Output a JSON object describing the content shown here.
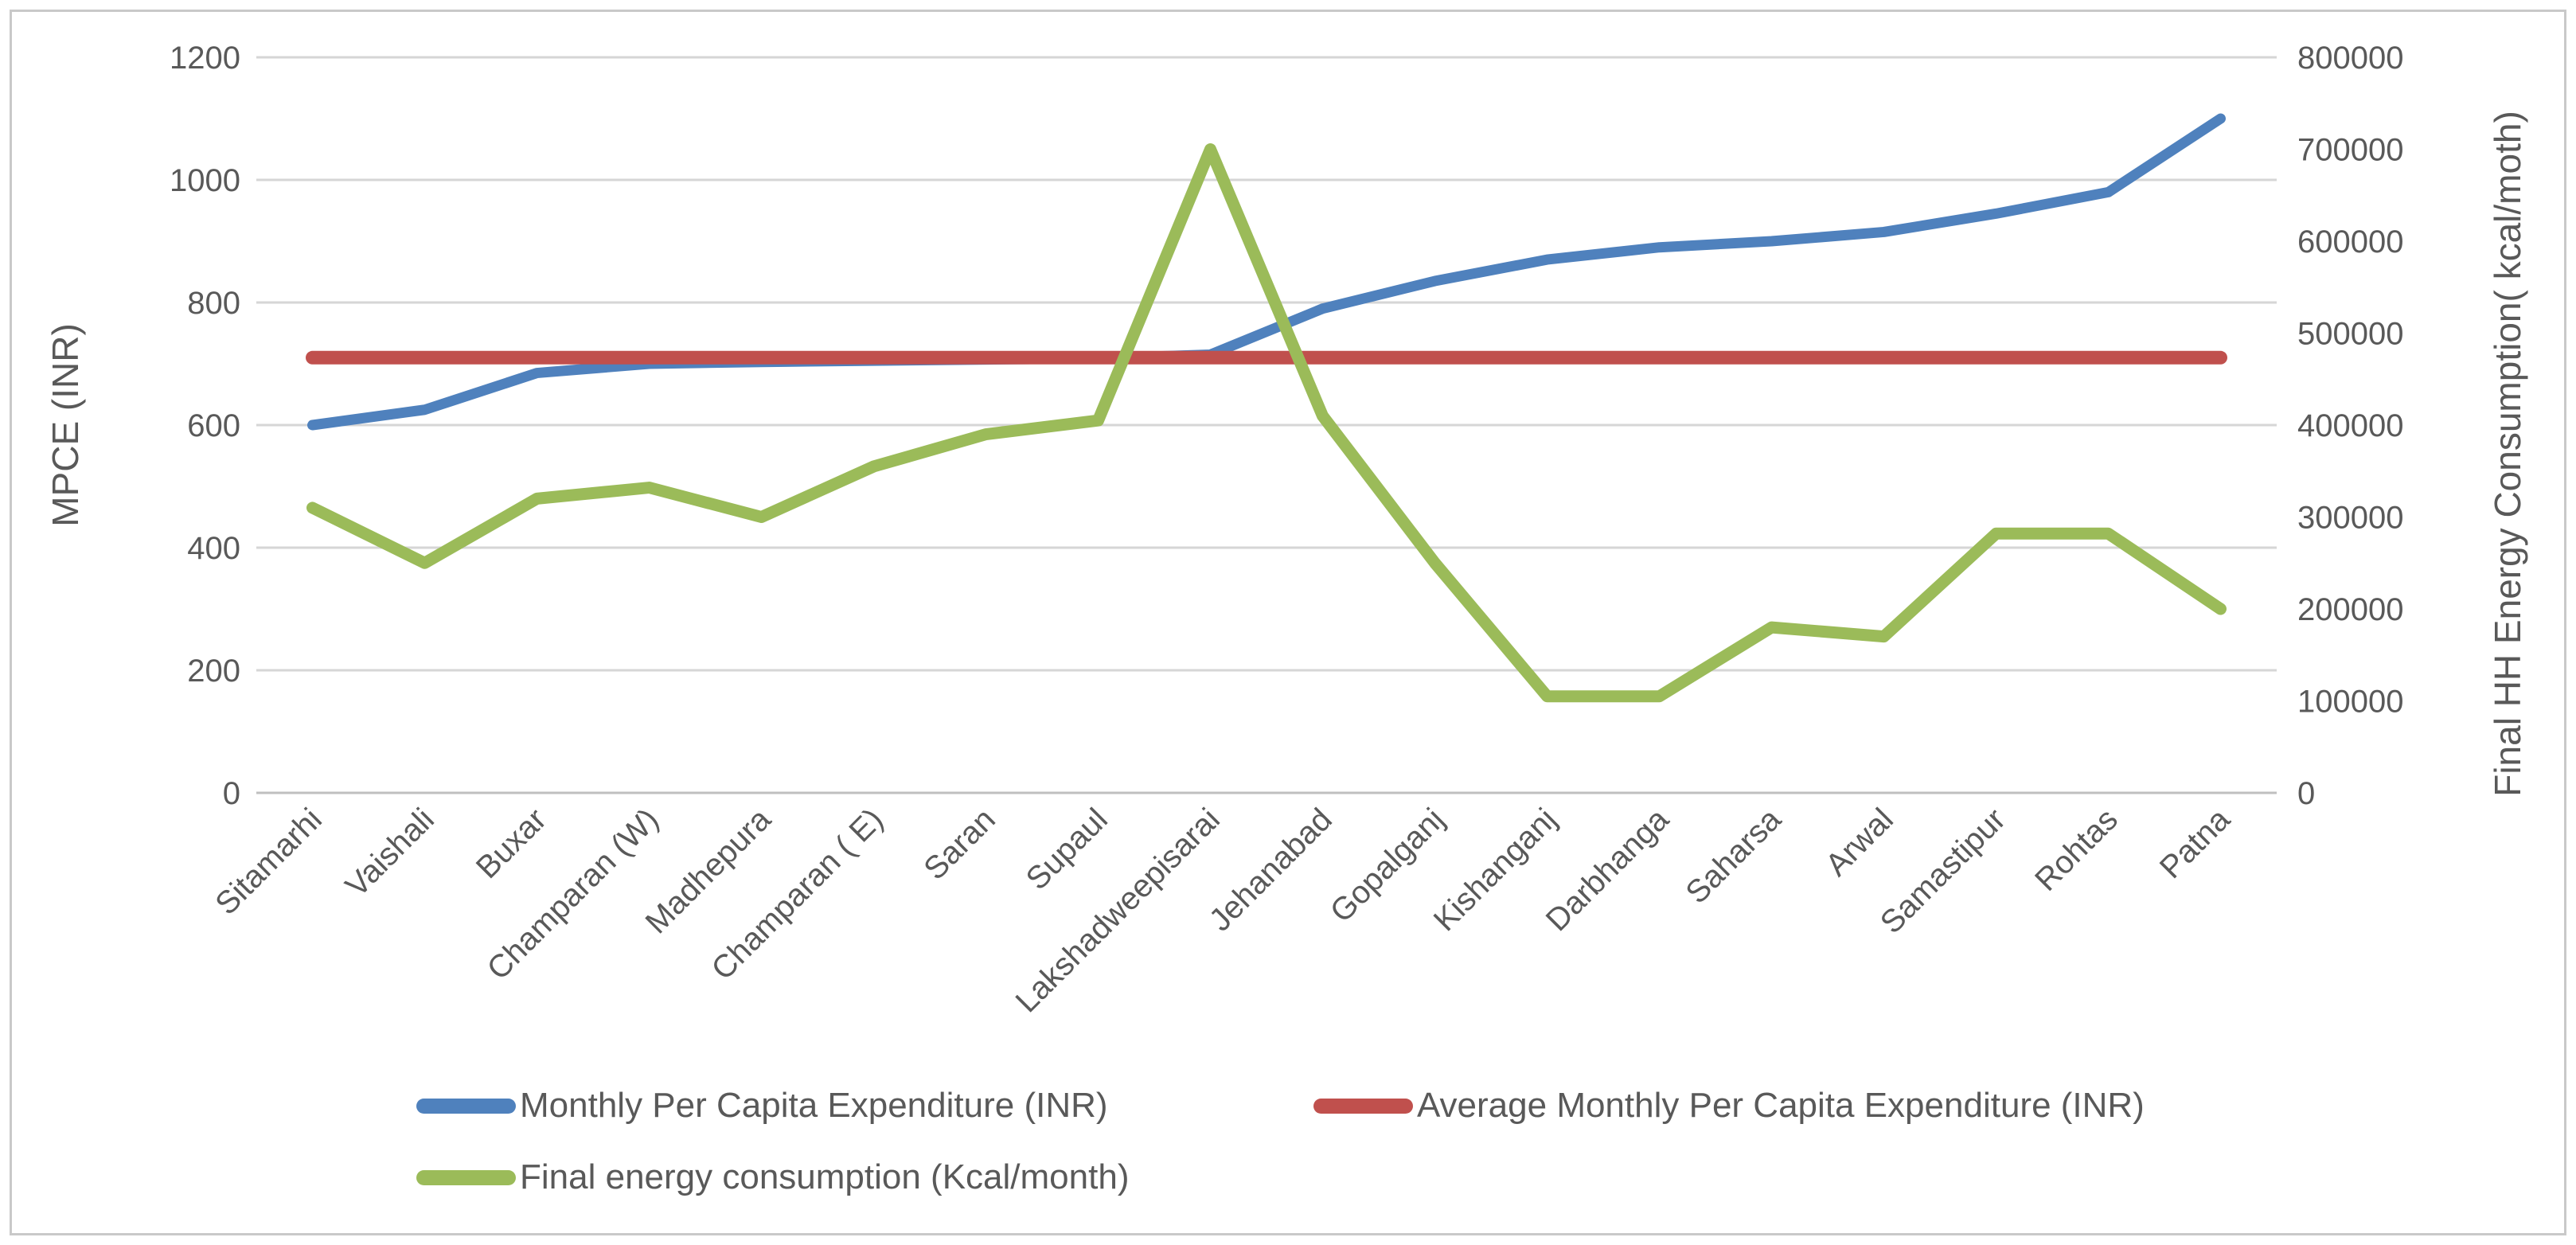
{
  "chart_data": {
    "type": "line",
    "title": "",
    "xlabel": "",
    "ylabel_left": "MPCE (INR)",
    "ylabel_right": "Final HH Energy Consumption( kcal/moth)",
    "categories": [
      "Sitamarhi",
      "Vaishali",
      "Buxar",
      "Champaran (W)",
      "Madhepura",
      "Champaran ( E)",
      "Saran",
      "Supaul",
      "Lakshadweepisarai",
      "Jehanabad",
      "Gopalganj",
      "Kishanganj",
      "Darbhanga",
      "Saharsa",
      "Arwal",
      "Samastipur",
      "Rohtas",
      "Patna"
    ],
    "series": [
      {
        "name": "Monthly Per Capita Expenditure (INR)",
        "axis": "left",
        "color": "#4F81BD",
        "stroke_width": 13,
        "values": [
          600,
          625,
          685,
          700,
          703,
          705,
          707,
          709,
          715,
          790,
          835,
          870,
          890,
          900,
          915,
          945,
          980,
          1100
        ]
      },
      {
        "name": "Average Monthly Per Capita Expenditure (INR)",
        "axis": "left",
        "color": "#C0504D",
        "stroke_width": 17,
        "values": [
          710,
          710,
          710,
          710,
          710,
          710,
          710,
          710,
          710,
          710,
          710,
          710,
          710,
          710,
          710,
          710,
          710,
          710
        ]
      },
      {
        "name": "Final energy consumption (Kcal/month)",
        "axis": "right",
        "color": "#9BBB59",
        "stroke_width": 15,
        "values": [
          310000,
          250000,
          320000,
          332000,
          300000,
          355000,
          390000,
          405000,
          700000,
          410000,
          250000,
          105000,
          105000,
          180000,
          170000,
          282000,
          282000,
          200000
        ]
      }
    ],
    "y_left": {
      "min": 0,
      "max": 1200,
      "step": 200,
      "tick_labels": [
        "0",
        "200",
        "400",
        "600",
        "800",
        "1000",
        "1200"
      ]
    },
    "y_right": {
      "min": 0,
      "max": 800000,
      "step": 100000,
      "tick_labels": [
        "0",
        "100000",
        "200000",
        "300000",
        "400000",
        "500000",
        "600000",
        "700000",
        "800000"
      ]
    },
    "grid": true,
    "legend_position": "bottom",
    "colors": {
      "text": "#595959",
      "grid": "#D6D6D6",
      "axis_line": "#BFBFBF",
      "background": "#FFFFFF",
      "border": "#C9C9C9"
    }
  }
}
